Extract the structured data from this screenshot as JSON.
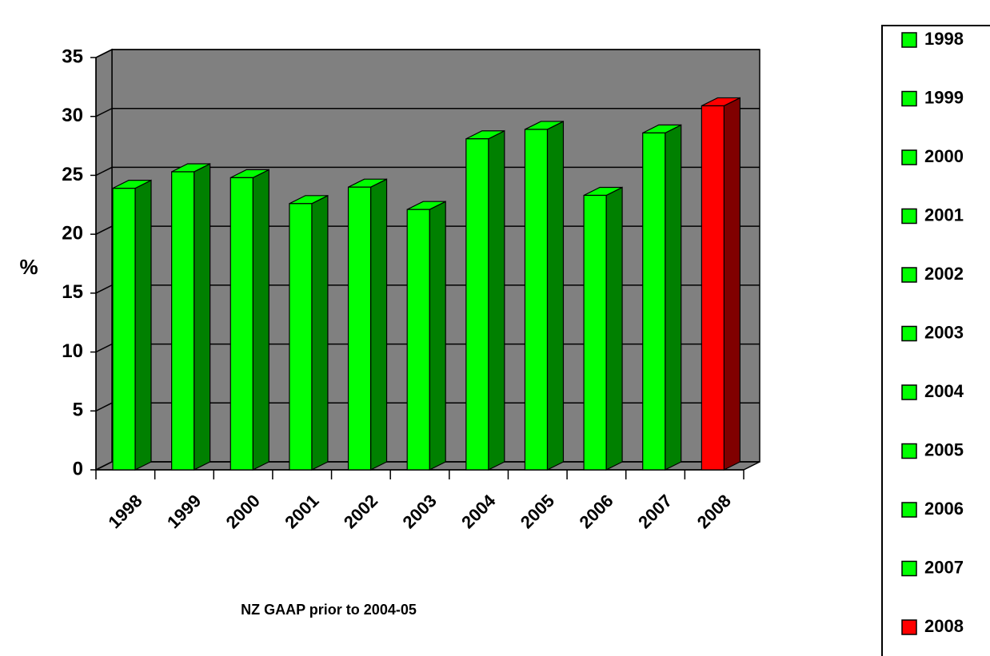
{
  "chart_data": {
    "type": "bar3d",
    "categories": [
      "1998",
      "1999",
      "2000",
      "2001",
      "2002",
      "2003",
      "2004",
      "2005",
      "2006",
      "2007",
      "2008"
    ],
    "values": [
      23.9,
      25.3,
      24.8,
      22.6,
      24.0,
      22.1,
      28.1,
      28.9,
      23.3,
      28.6,
      30.9
    ],
    "colors": [
      "#00ff00",
      "#00ff00",
      "#00ff00",
      "#00ff00",
      "#00ff00",
      "#00ff00",
      "#00ff00",
      "#00ff00",
      "#00ff00",
      "#00ff00",
      "#ff0000"
    ],
    "y_label": "%",
    "x_label": "NZ GAAP prior to 2004-05",
    "ylim": [
      0,
      35
    ],
    "yticks": [
      0,
      5,
      10,
      15,
      20,
      25,
      30,
      35
    ],
    "grid": true,
    "legend": "right"
  }
}
